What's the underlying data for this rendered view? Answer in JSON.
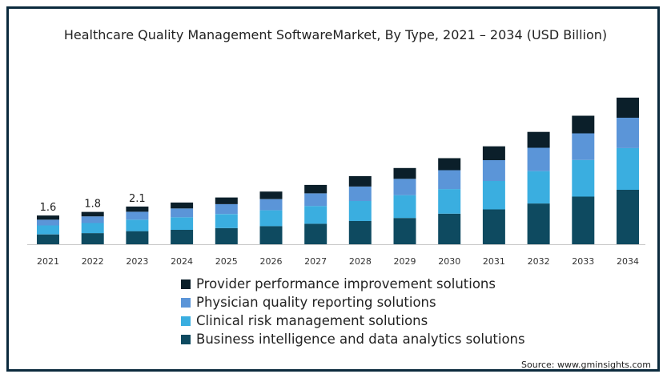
{
  "chart_data": {
    "type": "bar",
    "stacked": true,
    "title": "Healthcare Quality Management SoftwareMarket, By Type, 2021 – 2034 (USD Billion)",
    "categories": [
      "2021",
      "2022",
      "2023",
      "2024",
      "2025",
      "2026",
      "2027",
      "2028",
      "2029",
      "2030",
      "2031",
      "2032",
      "2033",
      "2034"
    ],
    "series": [
      {
        "name": "Business intelligence and data analytics solutions",
        "color": "#0e4a60",
        "values": [
          0.55,
          0.62,
          0.73,
          0.8,
          0.9,
          1.01,
          1.14,
          1.29,
          1.46,
          1.7,
          1.94,
          2.27,
          2.65,
          3.03
        ]
      },
      {
        "name": "Clinical risk management solutions",
        "color": "#3aaee0",
        "values": [
          0.5,
          0.56,
          0.64,
          0.7,
          0.78,
          0.88,
          0.99,
          1.12,
          1.27,
          1.37,
          1.58,
          1.8,
          2.04,
          2.32
        ]
      },
      {
        "name": "Physician quality reporting solutions",
        "color": "#5b95d8",
        "values": [
          0.32,
          0.37,
          0.44,
          0.49,
          0.55,
          0.62,
          0.7,
          0.8,
          0.91,
          1.05,
          1.16,
          1.3,
          1.48,
          1.69
        ]
      },
      {
        "name": "Provider performance improvement solutions",
        "color": "#0b1f2a",
        "values": [
          0.23,
          0.25,
          0.29,
          0.33,
          0.37,
          0.42,
          0.47,
          0.58,
          0.6,
          0.67,
          0.77,
          0.88,
          0.98,
          1.12
        ]
      }
    ],
    "data_labels": [
      {
        "category": "2021",
        "text": "1.6"
      },
      {
        "category": "2022",
        "text": "1.8"
      },
      {
        "category": "2023",
        "text": "2.1"
      }
    ],
    "ylim": [
      0,
      9
    ],
    "xlabel": "",
    "ylabel": "",
    "legend_position": "bottom",
    "grid": false
  },
  "legend": {
    "items": [
      {
        "label": "Provider performance improvement solutions",
        "color": "#0b1f2a"
      },
      {
        "label": "Physician quality reporting solutions",
        "color": "#5b95d8"
      },
      {
        "label": "Clinical risk management solutions",
        "color": "#3aaee0"
      },
      {
        "label": "Business intelligence and data analytics solutions",
        "color": "#0e4a60"
      }
    ]
  },
  "source": "Source: www.gminsights.com"
}
